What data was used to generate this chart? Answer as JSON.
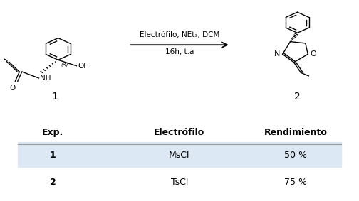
{
  "arrow_text_top": "Electrófilo, NEt₃, DCM",
  "arrow_text_bottom": "16h, t.a",
  "compound1_label": "1",
  "compound2_label": "2",
  "table_headers": [
    "Exp.",
    "Electrófilo",
    "Rendimiento"
  ],
  "table_rows": [
    [
      "1",
      "MsCl",
      "50 %"
    ],
    [
      "2",
      "TsCl",
      "75 %"
    ]
  ],
  "odd_row_color": "#dce9f5",
  "even_row_color": "#ffffff",
  "bg_color": "#ffffff",
  "header_fontsize": 9,
  "body_fontsize": 9,
  "fig_width": 5.04,
  "fig_height": 2.83
}
